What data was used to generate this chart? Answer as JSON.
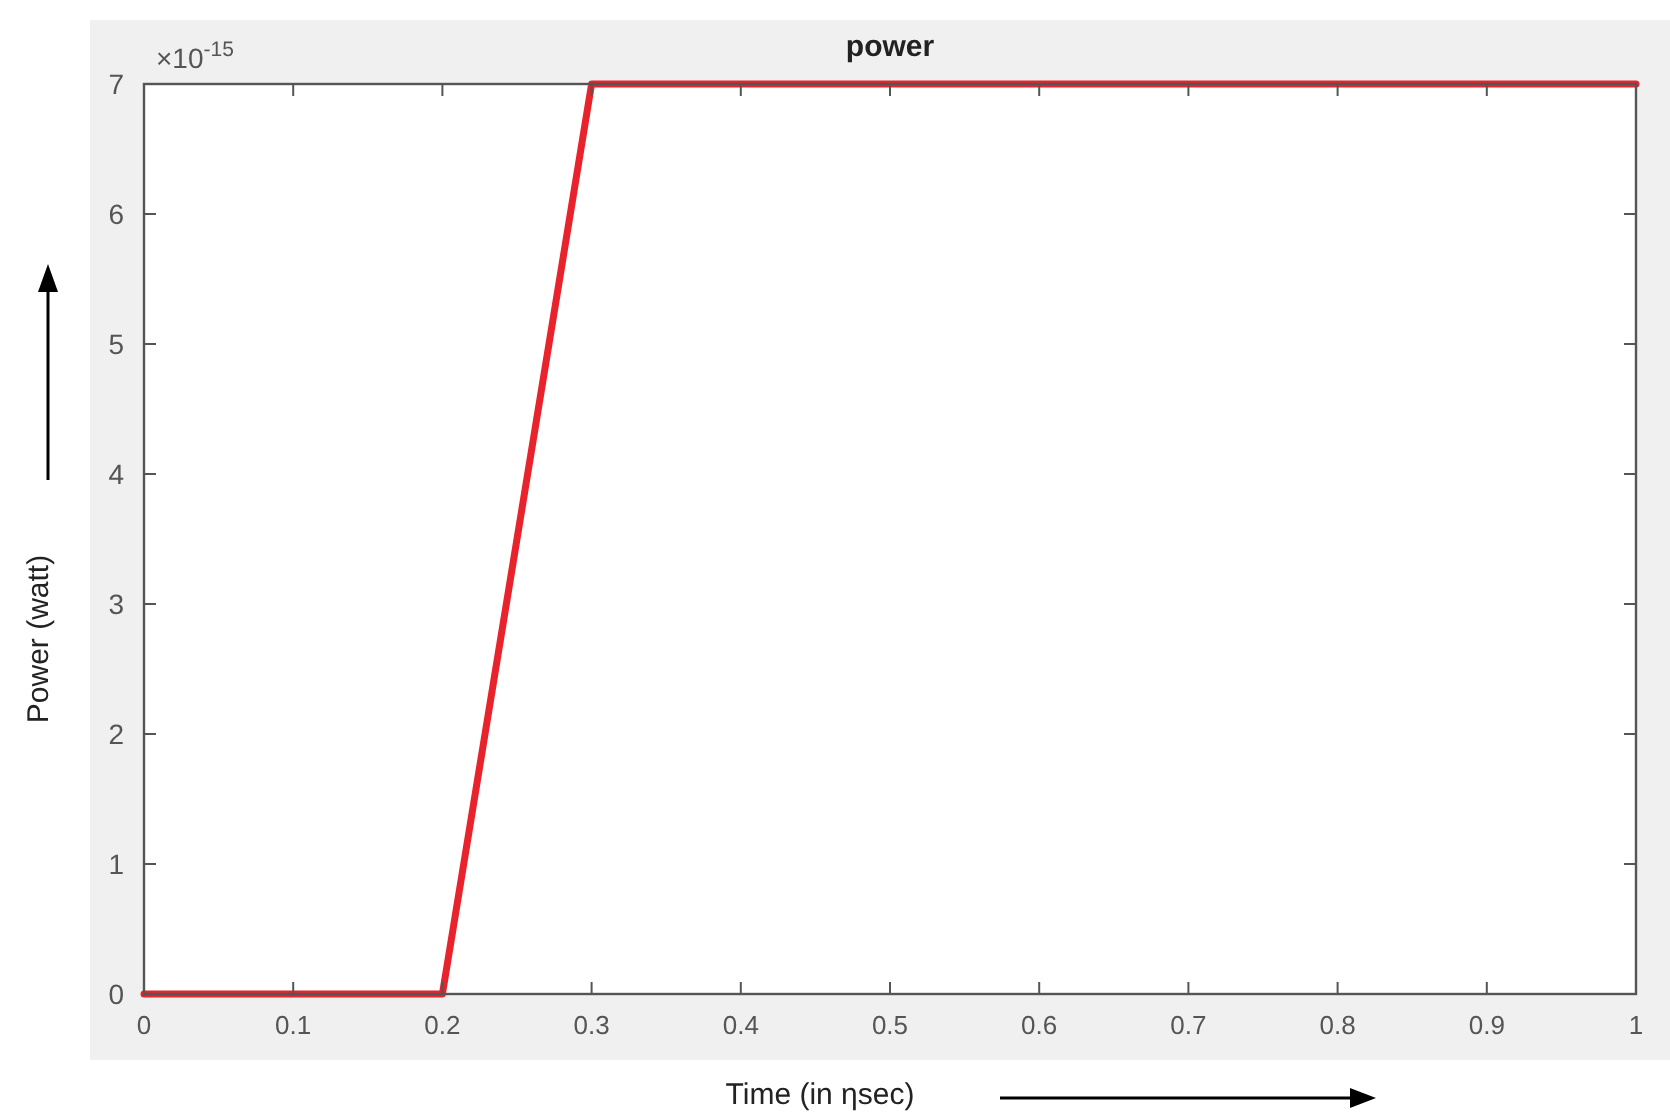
{
  "chart_data": {
    "type": "line",
    "title": "power",
    "xlabel": "Time (in ηsec)",
    "ylabel": "Power (watt)",
    "annotations": [
      "×10$^{-15}$"
    ],
    "x": [
      0,
      0.2,
      0.3,
      1
    ],
    "series": [
      {
        "color": "#e8232b",
        "values": [
          0,
          0,
          7,
          7
        ]
      }
    ],
    "xlim": [
      0,
      1
    ],
    "xticks": [
      0,
      0.1,
      0.2,
      0.3,
      0.4,
      0.5,
      0.6,
      0.7,
      0.8,
      0.9,
      1
    ],
    "ylim": [
      0,
      7
    ],
    "yticks": [
      0,
      1,
      2,
      3,
      4,
      5,
      6,
      7
    ],
    "grid": false,
    "marker": "none",
    "line_style": "solid"
  }
}
